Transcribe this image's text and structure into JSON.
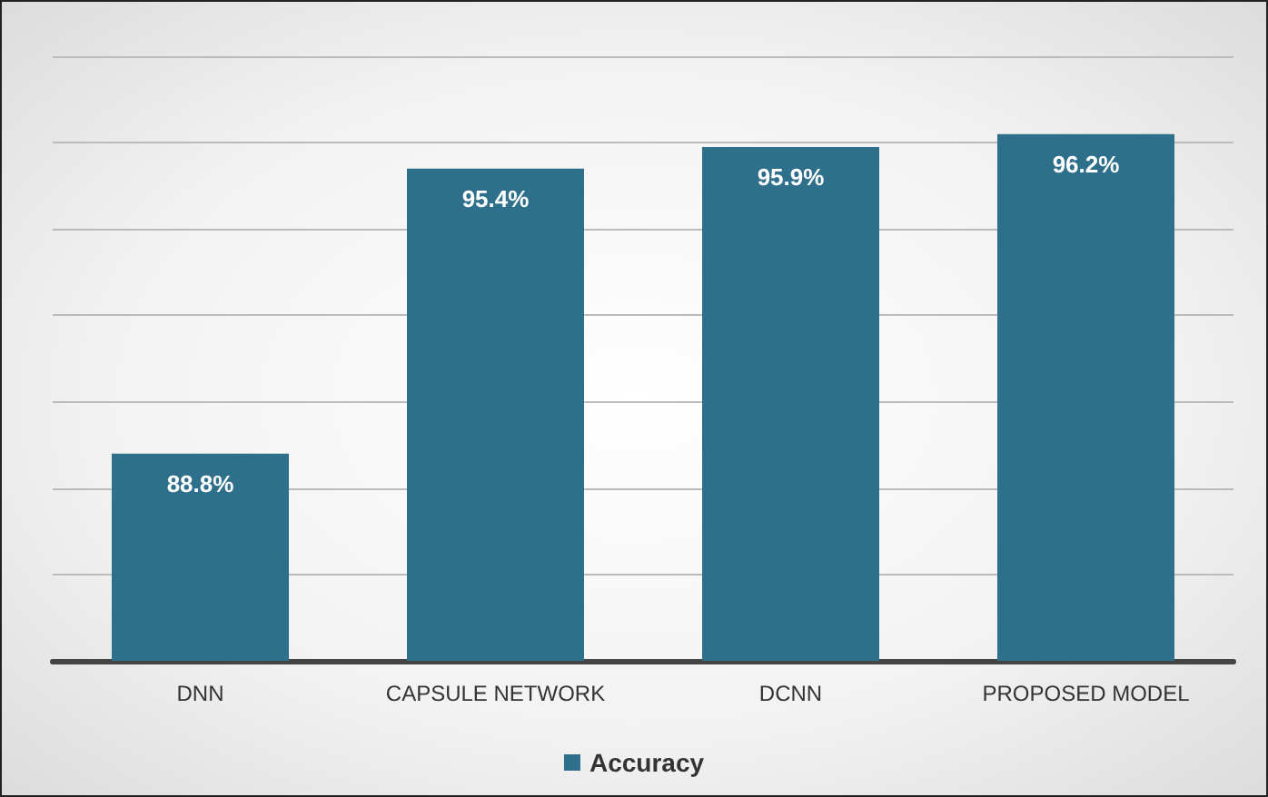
{
  "chart_data": {
    "type": "bar",
    "categories": [
      "DNN",
      "CAPSULE NETWORK",
      "DCNN",
      "PROPOSED MODEL"
    ],
    "series": [
      {
        "name": "Accuracy",
        "color": "#2e6f8c",
        "values": [
          88.8,
          95.4,
          95.9,
          96.2
        ],
        "value_labels": [
          "88.8%",
          "95.4%",
          "95.9%",
          "96.2%"
        ]
      }
    ],
    "ylim": [
      84,
      98
    ],
    "yticks": [
      {
        "value": 84,
        "label": null
      },
      {
        "value": 86,
        "label": null
      },
      {
        "value": 88,
        "label": null
      },
      {
        "value": 90,
        "label": null
      },
      {
        "value": 92,
        "label": null
      },
      {
        "value": 94,
        "label": null
      },
      {
        "value": 96,
        "label": null
      },
      {
        "value": 98,
        "label": null
      }
    ],
    "tick_labels": "x",
    "grid": "y",
    "legend": "bottom"
  }
}
